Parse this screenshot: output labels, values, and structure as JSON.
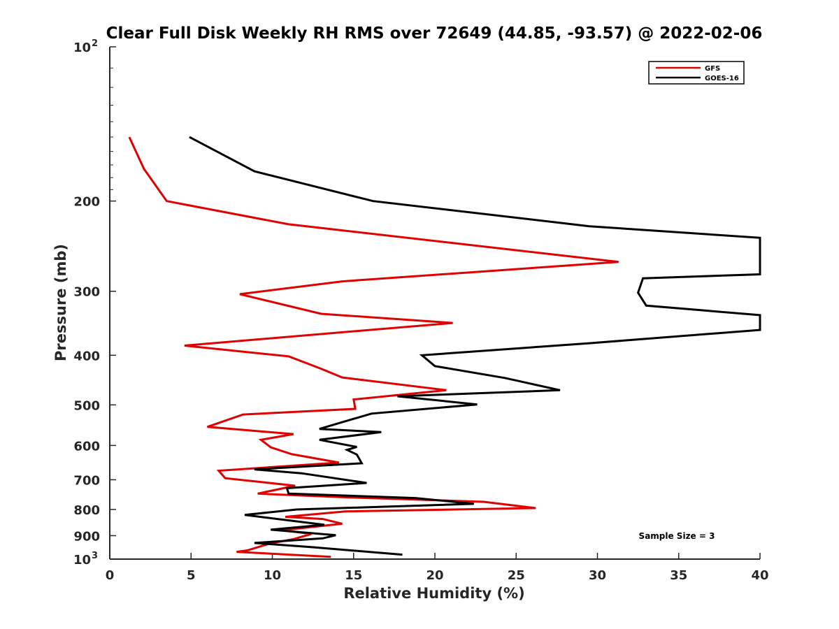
{
  "chart_data": {
    "type": "line",
    "title": "Clear Full Disk Weekly RH RMS over 72649 (44.85, -93.57) @ 2022-02-06",
    "xlabel": "Relative Humidity (%)",
    "ylabel": "Pressure (mb)",
    "xlim": [
      0,
      40
    ],
    "ylim": [
      100,
      1000
    ],
    "y_scale": "log",
    "y_reversed": true,
    "x_ticks": [
      "0",
      "5",
      "10",
      "15",
      "20",
      "25",
      "30",
      "35",
      "40"
    ],
    "y_ticks": [
      {
        "value": 100,
        "label": "10",
        "sup": "2"
      },
      {
        "value": 200,
        "label": "200"
      },
      {
        "value": 300,
        "label": "300"
      },
      {
        "value": 400,
        "label": "400"
      },
      {
        "value": 500,
        "label": "500"
      },
      {
        "value": 600,
        "label": "600"
      },
      {
        "value": 700,
        "label": "700"
      },
      {
        "value": 800,
        "label": "800"
      },
      {
        "value": 900,
        "label": "900"
      },
      {
        "value": 1000,
        "label": "10",
        "sup": "3"
      }
    ],
    "grid": false,
    "legend": {
      "position": "top-right"
    },
    "annotation": "Sample Size = 3",
    "series": [
      {
        "name": "GFS",
        "color": "#e00000",
        "points": [
          [
            1.2,
            150
          ],
          [
            2.1,
            173
          ],
          [
            3.5,
            200
          ],
          [
            11.0,
            222
          ],
          [
            31.3,
            263
          ],
          [
            14.3,
            287
          ],
          [
            8.0,
            304
          ],
          [
            13.0,
            332
          ],
          [
            21.1,
            346
          ],
          [
            4.6,
            383
          ],
          [
            11.0,
            402
          ],
          [
            13.0,
            425
          ],
          [
            14.3,
            442
          ],
          [
            20.7,
            468
          ],
          [
            15.0,
            488
          ],
          [
            15.1,
            509
          ],
          [
            8.2,
            522
          ],
          [
            6.0,
            552
          ],
          [
            11.3,
            570
          ],
          [
            9.3,
            585
          ],
          [
            9.9,
            605
          ],
          [
            11.2,
            624
          ],
          [
            14.1,
            648
          ],
          [
            6.7,
            672
          ],
          [
            7.1,
            695
          ],
          [
            11.4,
            719
          ],
          [
            9.1,
            745
          ],
          [
            14.3,
            757
          ],
          [
            23.0,
            773
          ],
          [
            26.2,
            795
          ],
          [
            14.5,
            807
          ],
          [
            10.8,
            827
          ],
          [
            13.1,
            835
          ],
          [
            14.3,
            853
          ],
          [
            10.6,
            878
          ],
          [
            12.4,
            893
          ],
          [
            11.3,
            914
          ],
          [
            9.8,
            933
          ],
          [
            8.5,
            961
          ],
          [
            7.8,
            968
          ],
          [
            13.6,
            990
          ]
        ]
      },
      {
        "name": "GOES-16",
        "color": "#000000",
        "points": [
          [
            4.9,
            150
          ],
          [
            8.9,
            175
          ],
          [
            16.2,
            200
          ],
          [
            29.5,
            224
          ],
          [
            40.0,
            236
          ],
          [
            40.0,
            278
          ],
          [
            32.8,
            283
          ],
          [
            32.5,
            302
          ],
          [
            33.0,
            320
          ],
          [
            40.0,
            334
          ],
          [
            40.0,
            357
          ],
          [
            29.5,
            379
          ],
          [
            19.2,
            400
          ],
          [
            20.0,
            420
          ],
          [
            24.3,
            443
          ],
          [
            27.7,
            468
          ],
          [
            17.7,
            481
          ],
          [
            22.6,
            499
          ],
          [
            16.1,
            520
          ],
          [
            12.9,
            557
          ],
          [
            16.7,
            565
          ],
          [
            12.9,
            585
          ],
          [
            15.2,
            604
          ],
          [
            14.6,
            612
          ],
          [
            15.2,
            625
          ],
          [
            15.5,
            650
          ],
          [
            8.9,
            668
          ],
          [
            11.8,
            680
          ],
          [
            15.8,
            710
          ],
          [
            10.9,
            727
          ],
          [
            11.0,
            745
          ],
          [
            18.8,
            760
          ],
          [
            22.4,
            780
          ],
          [
            11.5,
            800
          ],
          [
            8.3,
            820
          ],
          [
            13.2,
            857
          ],
          [
            9.9,
            876
          ],
          [
            13.9,
            898
          ],
          [
            13.1,
            911
          ],
          [
            8.9,
            930
          ],
          [
            12.5,
            948
          ],
          [
            18.0,
            980
          ]
        ]
      }
    ]
  }
}
